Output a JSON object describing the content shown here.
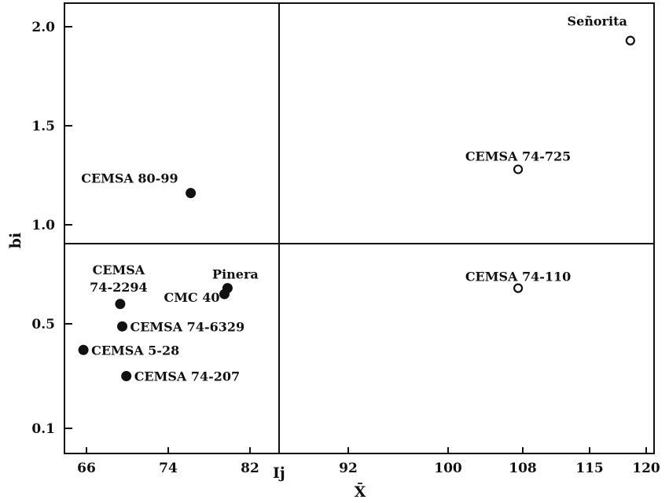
{
  "chart_data": {
    "type": "scatter",
    "xlabel": "X̄",
    "ylabel": "bi",
    "x_ticks": [
      "66",
      "74",
      "82",
      "92",
      "100",
      "108",
      "115",
      "120"
    ],
    "y_ticks": [
      "2.0",
      "1.5",
      "1.0",
      "0.5",
      "0.1"
    ],
    "reference_lines": {
      "vertical_marker": "Ij",
      "x": 84.9,
      "y": 0.98
    },
    "points": [
      {
        "label": "Señorita",
        "x": 118.6,
        "y": 1.93,
        "marker": "open"
      },
      {
        "label": "CEMSA 74-725",
        "x": 107.5,
        "y": 1.28,
        "marker": "open"
      },
      {
        "label": "CEMSA 74-110",
        "x": 107.5,
        "y": 0.68,
        "marker": "open"
      },
      {
        "label": "CEMSA 80-99",
        "x": 76.2,
        "y": 1.16,
        "marker": "filled"
      },
      {
        "label": "Pinera",
        "x": 79.8,
        "y": 0.68,
        "marker": "filled"
      },
      {
        "label": "CMC 40",
        "x": 79.5,
        "y": 0.65,
        "marker": "filled"
      },
      {
        "label": "CEMSA\n74-2294",
        "x": 69.3,
        "y": 0.6,
        "marker": "filled"
      },
      {
        "label": "CEMSA 74-6329",
        "x": 69.5,
        "y": 0.49,
        "marker": "filled"
      },
      {
        "label": "CEMSA 5-28",
        "x": 65.7,
        "y": 0.4,
        "marker": "filled"
      },
      {
        "label": "CEMSA 74-207",
        "x": 69.9,
        "y": 0.3,
        "marker": "filled"
      }
    ]
  }
}
